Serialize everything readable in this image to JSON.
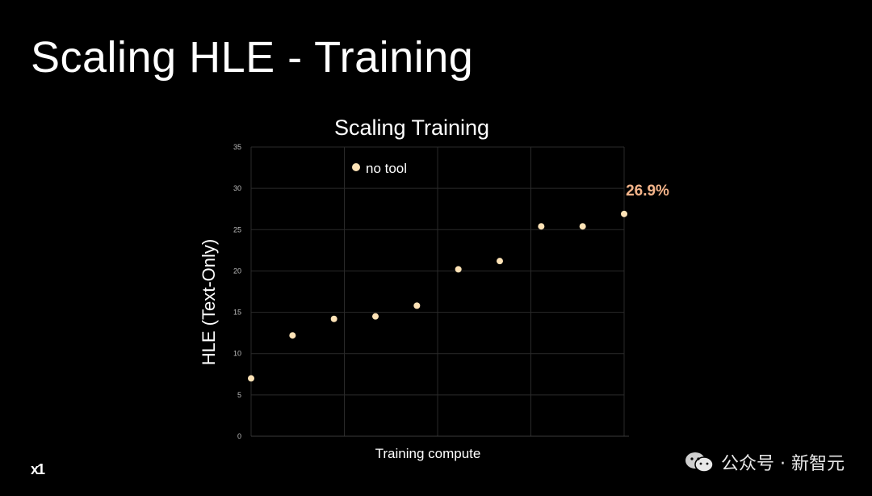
{
  "slide": {
    "title": "Scaling HLE - Training"
  },
  "logo": {
    "text": "x1"
  },
  "watermark": {
    "text": "公众号 · 新智元",
    "icon": "wechat-icon"
  },
  "colors": {
    "point": "#fde2b6",
    "annotation": "#f4b48a",
    "grid": "#2a2a2a"
  },
  "chart_data": {
    "type": "scatter",
    "title": "Scaling Training",
    "xlabel": "Training compute",
    "ylabel": "HLE (Text-Only)",
    "ylim": [
      0,
      35
    ],
    "yticks": [
      0,
      5,
      10,
      15,
      20,
      25,
      30,
      35
    ],
    "grid": true,
    "legend_position": "top-left",
    "series": [
      {
        "name": "no tool",
        "x": [
          1,
          2,
          3,
          4,
          5,
          6,
          7,
          8,
          9,
          10
        ],
        "y": [
          7.0,
          12.2,
          14.2,
          14.5,
          15.8,
          20.2,
          21.2,
          25.4,
          25.4,
          26.9
        ]
      }
    ],
    "annotations": [
      {
        "text": "26.9%",
        "x": 10,
        "y": 26.9
      }
    ]
  }
}
